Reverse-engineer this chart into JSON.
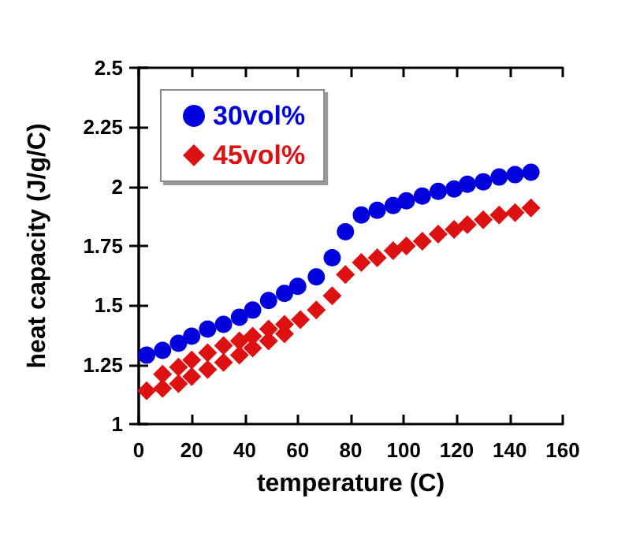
{
  "chart_data": {
    "type": "scatter",
    "xlabel": "temperature (C)",
    "ylabel": "heat capacity (J/g/C)",
    "xlim": [
      0,
      160
    ],
    "xticks": [
      0,
      20,
      40,
      60,
      80,
      100,
      120,
      140,
      160
    ],
    "ylim": [
      1,
      2.5
    ],
    "yticks": [
      1,
      1.25,
      1.5,
      1.75,
      2,
      2.25,
      2.5
    ],
    "grid": false,
    "legend": "top left",
    "series": [
      {
        "name": "30vol%",
        "color": "#0000dd",
        "marker": "circle",
        "x": [
          3,
          9,
          15,
          20,
          26,
          32,
          38,
          43,
          49,
          55,
          60,
          67,
          73,
          78,
          84,
          90,
          96,
          101,
          107,
          113,
          119,
          124,
          130,
          136,
          142,
          148
        ],
        "values": [
          1.29,
          1.31,
          1.34,
          1.37,
          1.4,
          1.42,
          1.45,
          1.48,
          1.52,
          1.55,
          1.58,
          1.62,
          1.7,
          1.81,
          1.88,
          1.9,
          1.92,
          1.94,
          1.96,
          1.98,
          1.99,
          2.01,
          2.02,
          2.04,
          2.05,
          2.06
        ]
      },
      {
        "name": "45vol%",
        "color": "#dd1111",
        "marker": "diamond",
        "x": [
          3,
          9,
          9,
          15,
          15,
          20,
          20,
          26,
          26,
          32,
          32,
          38,
          38,
          43,
          43,
          49,
          49,
          55,
          55,
          61,
          67,
          73,
          78,
          84,
          90,
          96,
          101,
          107,
          113,
          119,
          124,
          130,
          136,
          142,
          148
        ],
        "values": [
          1.14,
          1.15,
          1.21,
          1.17,
          1.24,
          1.2,
          1.27,
          1.23,
          1.3,
          1.26,
          1.33,
          1.29,
          1.35,
          1.32,
          1.37,
          1.35,
          1.4,
          1.38,
          1.42,
          1.44,
          1.48,
          1.54,
          1.63,
          1.68,
          1.7,
          1.73,
          1.75,
          1.77,
          1.8,
          1.82,
          1.84,
          1.86,
          1.88,
          1.89,
          1.91
        ]
      }
    ]
  }
}
